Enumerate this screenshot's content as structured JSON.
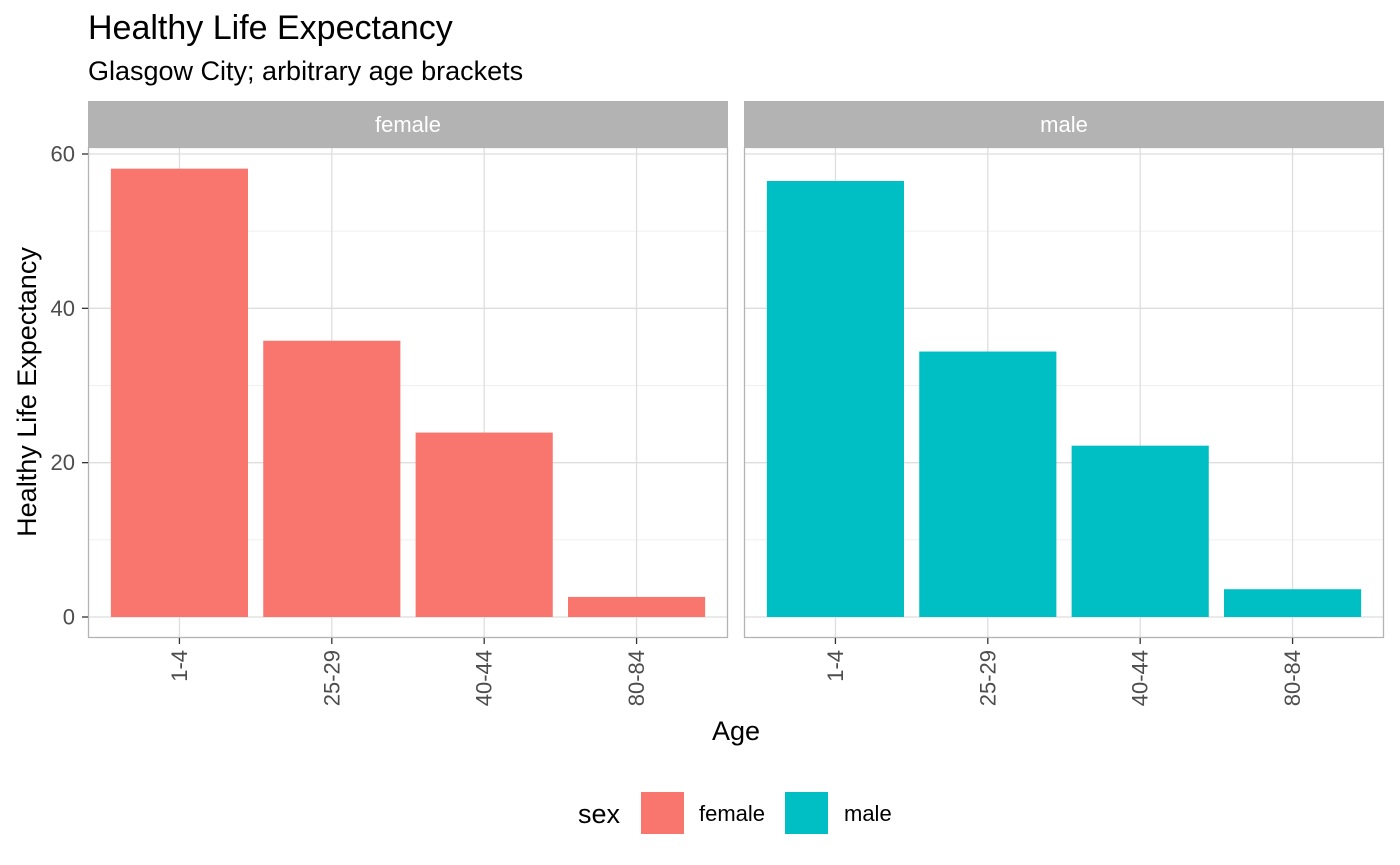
{
  "chart_data": {
    "type": "bar",
    "title": "Healthy Life Expectancy",
    "subtitle": "Glasgow City; arbitrary age brackets",
    "xlabel": "Age",
    "ylabel": "Healthy Life Expectancy",
    "ylim": [
      0,
      60
    ],
    "y_ticks": [
      "0",
      "20",
      "40",
      "60"
    ],
    "categories": [
      "1-4",
      "25-29",
      "40-44",
      "80-84"
    ],
    "facets": [
      {
        "label": "female",
        "color": "#F8766D",
        "values": [
          58.1,
          35.8,
          23.9,
          2.6
        ]
      },
      {
        "label": "male",
        "color": "#00BFC4",
        "values": [
          56.5,
          34.4,
          22.2,
          3.6
        ]
      }
    ],
    "legend": {
      "title": "sex",
      "position": "bottom",
      "items": [
        {
          "label": "female",
          "color": "#F8766D"
        },
        {
          "label": "male",
          "color": "#00BFC4"
        }
      ]
    },
    "grid": true,
    "strip_color": "#B3B3B3",
    "strip_text_color": "#FFFFFF",
    "panel_border_color": "#B3B3B3",
    "grid_color": "#DEDEDE",
    "minor_grid_color": "#EFEFEF",
    "tick_label_color": "#4D4D4D"
  }
}
